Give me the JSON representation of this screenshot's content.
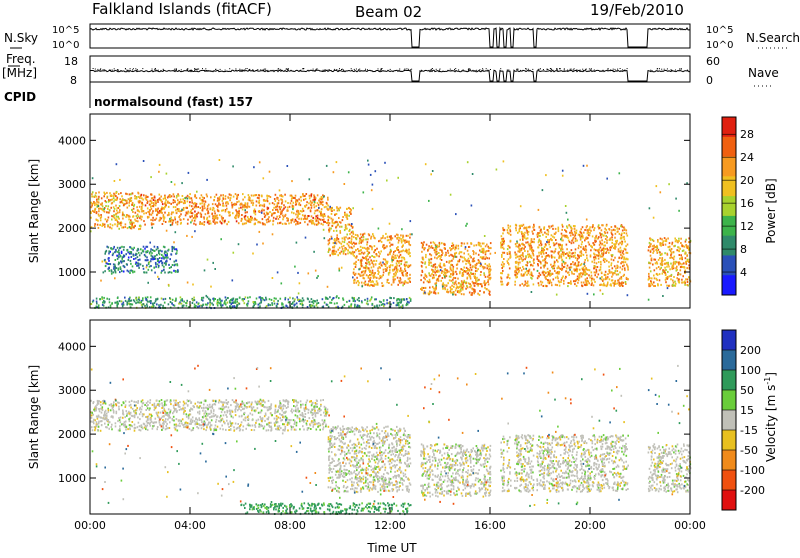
{
  "header": {
    "station": "Falkland Islands (fitACF)",
    "beam": "Beam 02",
    "date": "19/Feb/2010"
  },
  "status_panels": {
    "nsky_label": "N.Sky",
    "nsearch_label": "N.Search",
    "noise_ticks": [
      "10^5",
      "10^0"
    ],
    "freq_label_1": "Freq.",
    "freq_label_2": "[MHz]",
    "freq_ticks": [
      "18",
      "8"
    ],
    "nave_label": "Nave",
    "nave_ticks": [
      "60",
      "0"
    ],
    "cpid_label": "CPID",
    "cpid_text": "normalsound (fast) 157",
    "data_gaps_hours": [
      [
        12.85,
        13.2
      ],
      [
        16.0,
        16.12
      ],
      [
        16.25,
        16.38
      ],
      [
        16.55,
        16.65
      ],
      [
        16.8,
        16.95
      ],
      [
        17.75,
        17.85
      ],
      [
        21.5,
        22.3
      ]
    ]
  },
  "chart_data": [
    {
      "type": "heatmap",
      "title": "Power",
      "xlabel": "",
      "ylabel": "Slant Range [km]",
      "xlim_hours": [
        0,
        24
      ],
      "ylim": [
        180,
        4600
      ],
      "x_ticks": [
        "00:00",
        "04:00",
        "08:00",
        "12:00",
        "16:00",
        "20:00",
        "00:00"
      ],
      "y_ticks": [
        1000,
        2000,
        3000,
        4000
      ],
      "colorbar": {
        "label": "Power [dB]",
        "ticks": [
          4,
          8,
          12,
          16,
          20,
          24,
          28
        ],
        "range": [
          0,
          31
        ],
        "colors": [
          "#1a1aff",
          "#2a50b8",
          "#2f8a6a",
          "#3cb34a",
          "#a8d22e",
          "#f0c020",
          "#f79a20",
          "#f06010",
          "#e02010"
        ]
      },
      "echo_regions": [
        {
          "t": [
            0.0,
            2.0
          ],
          "range": [
            2000,
            2850
          ],
          "power": 21
        },
        {
          "t": [
            2.0,
            9.5
          ],
          "range": [
            2100,
            2800
          ],
          "power": 23
        },
        {
          "t": [
            9.5,
            10.5
          ],
          "range": [
            1400,
            2500
          ],
          "power": 21
        },
        {
          "t": [
            10.5,
            12.8
          ],
          "range": [
            700,
            1900
          ],
          "power": 22
        },
        {
          "t": [
            13.2,
            16.0
          ],
          "range": [
            500,
            1700
          ],
          "power": 22
        },
        {
          "t": [
            16.4,
            21.5
          ],
          "range": [
            700,
            2100
          ],
          "power": 22
        },
        {
          "t": [
            22.3,
            24.0
          ],
          "range": [
            700,
            1800
          ],
          "power": 21
        },
        {
          "t": [
            0.5,
            3.5
          ],
          "range": [
            1000,
            1600
          ],
          "power": 8
        },
        {
          "t": [
            0.0,
            12.8
          ],
          "range": [
            200,
            450
          ],
          "power": 10
        }
      ]
    },
    {
      "type": "heatmap",
      "title": "Velocity",
      "xlabel": "Time UT",
      "ylabel": "Slant Range [km]",
      "xlim_hours": [
        0,
        24
      ],
      "ylim": [
        180,
        4600
      ],
      "x_ticks": [
        "00:00",
        "04:00",
        "08:00",
        "12:00",
        "16:00",
        "20:00",
        "00:00"
      ],
      "y_ticks": [
        1000,
        2000,
        3000,
        4000
      ],
      "colorbar": {
        "label": "Velocity [m s^-1]",
        "ticks": [
          200,
          100,
          50,
          15,
          -15,
          -50,
          -100,
          -200
        ],
        "colors": [
          "#2030c0",
          "#2a6a9a",
          "#2f9a5a",
          "#6acd3a",
          "#c0c0b8",
          "#e8c020",
          "#f08a1a",
          "#f05010",
          "#e01010"
        ]
      },
      "echo_regions": [
        {
          "t": [
            0.0,
            9.5
          ],
          "range": [
            2100,
            2800
          ],
          "velocity": 0
        },
        {
          "t": [
            9.5,
            12.8
          ],
          "range": [
            700,
            2200
          ],
          "velocity": 0
        },
        {
          "t": [
            13.2,
            16.0
          ],
          "range": [
            600,
            1800
          ],
          "velocity": 0
        },
        {
          "t": [
            16.4,
            21.5
          ],
          "range": [
            700,
            2000
          ],
          "velocity": 0
        },
        {
          "t": [
            22.3,
            24.0
          ],
          "range": [
            700,
            1800
          ],
          "velocity": 0
        },
        {
          "t": [
            6.0,
            12.8
          ],
          "range": [
            200,
            450
          ],
          "velocity": 60
        }
      ]
    }
  ]
}
